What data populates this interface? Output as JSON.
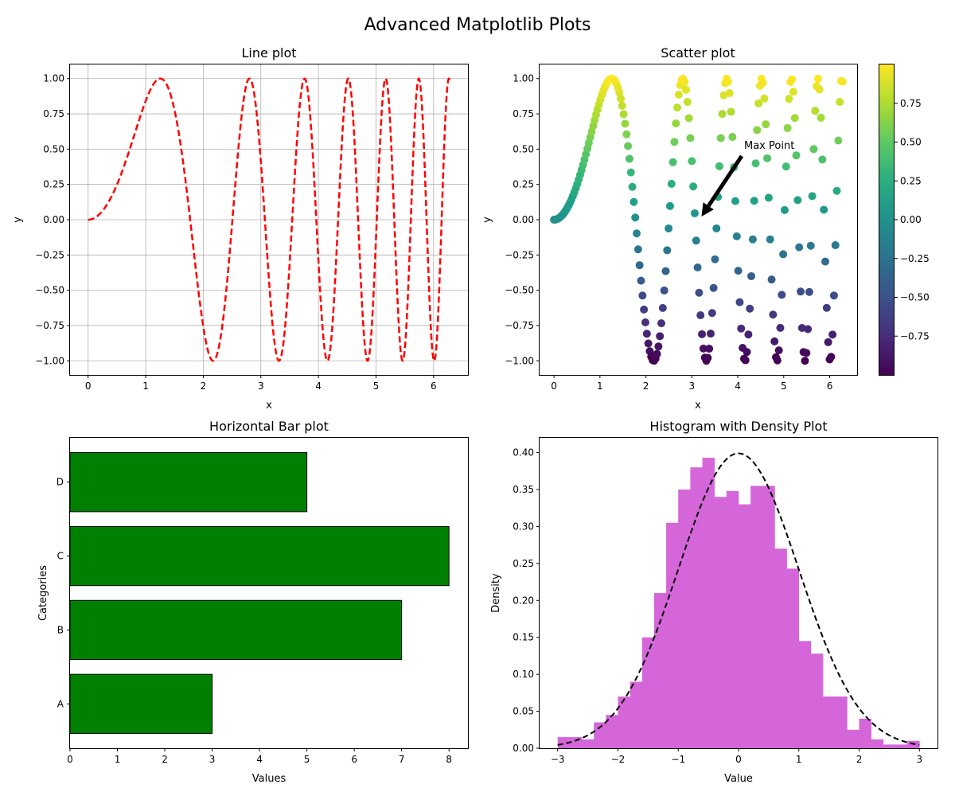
{
  "figure": {
    "suptitle": "Advanced Matplotlib Plots"
  },
  "chart_data": [
    {
      "type": "line",
      "title": "Line plot",
      "xlabel": "x",
      "ylabel": "y",
      "function": "y = sin(x^2)",
      "x_range": [
        0,
        6.283
      ],
      "xlim": [
        -0.314,
        6.597
      ],
      "ylim": [
        -1.1,
        1.1
      ],
      "grid": true,
      "style": {
        "color": "#ff0000",
        "linestyle": "dashed"
      },
      "xticks": [
        "0",
        "1",
        "2",
        "3",
        "4",
        "5",
        "6"
      ],
      "yticks": [
        "−1.00",
        "−0.75",
        "−0.50",
        "−0.25",
        "0.00",
        "0.25",
        "0.50",
        "0.75",
        "1.00"
      ]
    },
    {
      "type": "scatter",
      "title": "Scatter plot",
      "xlabel": "x",
      "ylabel": "y",
      "function": "y = sin(x^2), color = y",
      "x_range": [
        0,
        6.283
      ],
      "points": 200,
      "xlim": [
        -0.314,
        6.597
      ],
      "ylim": [
        -1.1,
        1.1
      ],
      "grid": false,
      "colormap": "viridis",
      "annotation": {
        "text": "Max Point",
        "xy": [
          3.14,
          0.0
        ],
        "xytext": [
          4.2,
          0.5
        ]
      },
      "xticks": [
        "0",
        "1",
        "2",
        "3",
        "4",
        "5",
        "6"
      ],
      "yticks": [
        "−1.00",
        "−0.75",
        "−0.50",
        "−0.25",
        "0.00",
        "0.25",
        "0.50",
        "0.75",
        "1.00"
      ],
      "colorbar": {
        "range": [
          -1.0,
          1.0
        ],
        "ticks": [
          "−0.75",
          "−0.50",
          "−0.25",
          "0.00",
          "0.25",
          "0.50",
          "0.75"
        ]
      }
    },
    {
      "type": "bar",
      "orientation": "horizontal",
      "title": "Horizontal Bar plot",
      "xlabel": "Values",
      "ylabel": "Categories",
      "categories": [
        "A",
        "B",
        "C",
        "D"
      ],
      "values": [
        3,
        7,
        8,
        5
      ],
      "xlim": [
        0,
        8.4
      ],
      "color": "#008000",
      "edgecolor": "#000000",
      "xticks": [
        "0",
        "1",
        "2",
        "3",
        "4",
        "5",
        "6",
        "7",
        "8"
      ]
    },
    {
      "type": "bar",
      "subtype": "histogram",
      "title": "Histogram with Density Plot",
      "xlabel": "Value",
      "ylabel": "Density",
      "bin_range": [
        -3.0,
        3.0
      ],
      "bins": 30,
      "densities": [
        0.015,
        0.015,
        0.012,
        0.035,
        0.045,
        0.07,
        0.09,
        0.15,
        0.21,
        0.305,
        0.35,
        0.38,
        0.393,
        0.34,
        0.348,
        0.33,
        0.355,
        0.355,
        0.27,
        0.243,
        0.145,
        0.128,
        0.07,
        0.07,
        0.025,
        0.04,
        0.012,
        0.005,
        0.005,
        0.01
      ],
      "color": "#d566d9",
      "density_curve": {
        "type": "normal",
        "mean": 0,
        "std": 1,
        "style": "dashed",
        "color": "#000000"
      },
      "xlim": [
        -3.3,
        3.3
      ],
      "ylim": [
        0,
        0.42
      ],
      "xticks": [
        "−3",
        "−2",
        "−1",
        "0",
        "1",
        "2",
        "3"
      ],
      "yticks": [
        "0.00",
        "0.05",
        "0.10",
        "0.15",
        "0.20",
        "0.25",
        "0.30",
        "0.35",
        "0.40"
      ]
    }
  ]
}
